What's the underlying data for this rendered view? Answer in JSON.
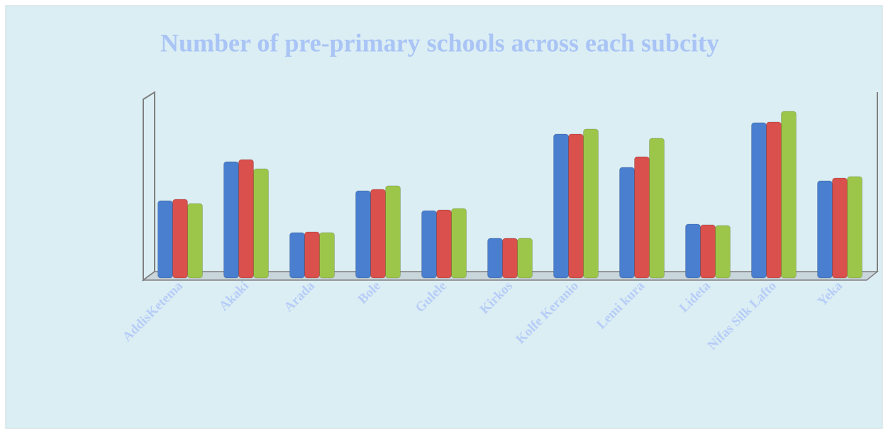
{
  "chart_data": {
    "type": "bar3d",
    "title": "Number of pre-primary schools across each subcity",
    "categories": [
      "AddisKetema",
      "Akaki",
      "Arada",
      "Bole",
      "Gulele",
      "Kirkos",
      "Kolfe Keranio",
      "Lemi kura",
      "Lideta",
      "Nifas Silk Lafto",
      "Yeka"
    ],
    "series": [
      {
        "color": "#4a7fcf",
        "values": [
          109,
          164,
          64,
          123,
          95,
          56,
          203,
          156,
          76,
          219,
          137
        ]
      },
      {
        "color": "#d9504c",
        "values": [
          111,
          167,
          65,
          125,
          96,
          56,
          203,
          171,
          75,
          220,
          141
        ]
      },
      {
        "color": "#9cc64a",
        "values": [
          105,
          154,
          64,
          130,
          98,
          56,
          210,
          197,
          74,
          235,
          143
        ]
      }
    ],
    "ylim": [
      0,
      262
    ]
  }
}
